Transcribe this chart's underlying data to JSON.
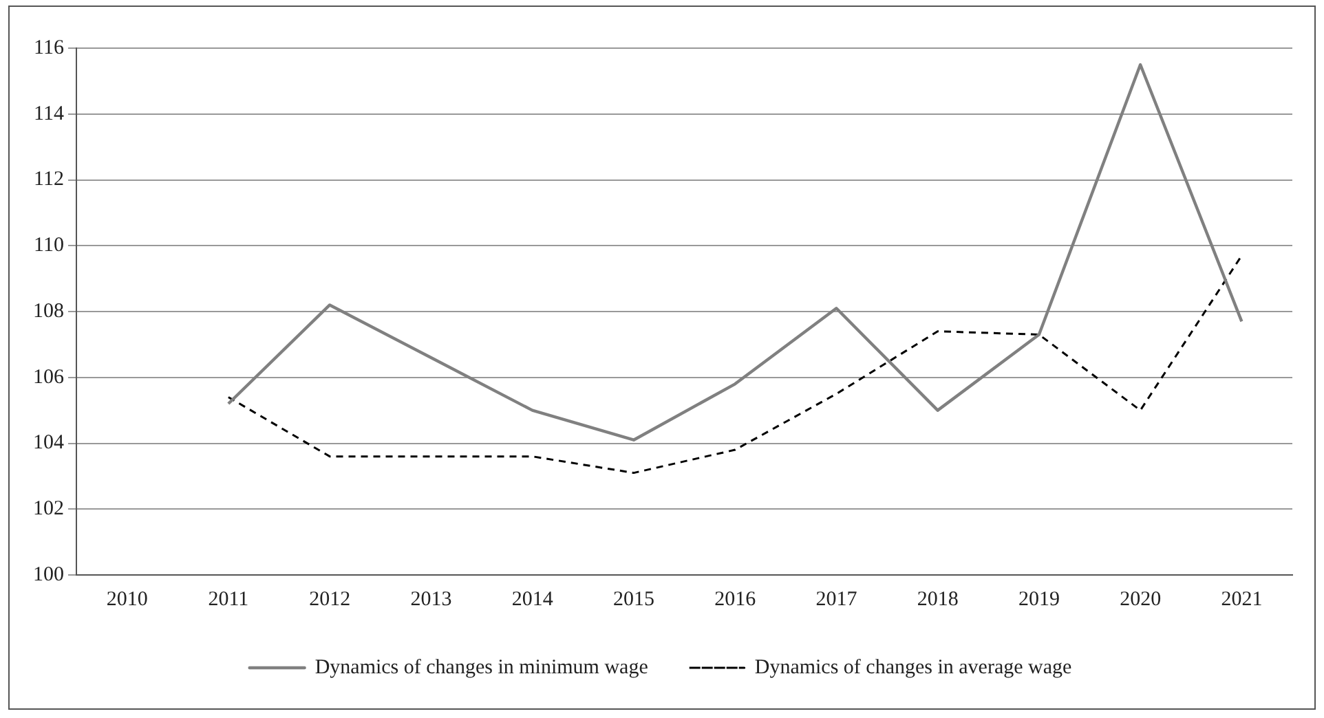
{
  "chart_data": {
    "type": "line",
    "categories": [
      "2010",
      "2011",
      "2012",
      "2013",
      "2014",
      "2015",
      "2016",
      "2017",
      "2018",
      "2019",
      "2020",
      "2021"
    ],
    "series": [
      {
        "name": "Dynamics of changes in minimum wage",
        "color": "#808080",
        "line_style": "solid",
        "values": [
          null,
          105.2,
          108.2,
          106.6,
          105.0,
          104.1,
          105.8,
          108.1,
          105.0,
          107.3,
          115.5,
          107.7
        ]
      },
      {
        "name": "Dynamics of changes in average wage",
        "color": "#000000",
        "line_style": "dashed",
        "values": [
          null,
          105.4,
          103.6,
          103.6,
          103.6,
          103.1,
          103.8,
          105.5,
          107.4,
          107.3,
          105.0,
          109.7
        ]
      }
    ],
    "ylim": [
      100,
      116
    ],
    "yticks": [
      100,
      102,
      104,
      106,
      108,
      110,
      112,
      114,
      116
    ],
    "grid": "y",
    "legend": "bottom",
    "marker": "none"
  }
}
